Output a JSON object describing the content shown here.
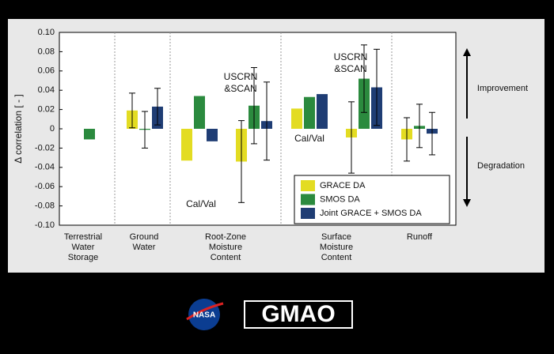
{
  "chart_data": {
    "type": "bar",
    "ylabel": "Δ correlation [ - ]",
    "ylim": [
      -0.1,
      0.1
    ],
    "yticks": [
      {
        "value": 0.1,
        "label": "0.10"
      },
      0.08,
      0.06,
      0.04,
      0.02,
      0,
      -0.02,
      -0.04,
      -0.06,
      -0.08,
      {
        "value": -0.1,
        "label": "-0.10"
      }
    ],
    "series": [
      {
        "name": "GRACE DA",
        "color": "#e3dc22"
      },
      {
        "name": "SMOS DA",
        "color": "#2b8a3e"
      },
      {
        "name": "Joint GRACE + SMOS DA",
        "color": "#1f3d74"
      }
    ],
    "groups": [
      {
        "label": [
          "Terrestrial",
          "Water",
          "Storage"
        ],
        "clusters": [
          {
            "values": [
              null,
              -0.011,
              null
            ]
          }
        ]
      },
      {
        "label": [
          "Ground",
          "Water"
        ],
        "clusters": [
          {
            "values": [
              0.019,
              -0.001,
              0.023
            ],
            "errors": [
              0.018,
              0.019,
              0.019
            ]
          }
        ]
      },
      {
        "label": [
          "Root-Zone",
          "Moisture",
          "Content"
        ],
        "clusters": [
          {
            "values": [
              -0.033,
              0.034,
              -0.013
            ],
            "annotation": [
              "Cal/Val"
            ]
          },
          {
            "values": [
              -0.034,
              0.024,
              0.008
            ],
            "errors": [
              0.0425,
              0.0395,
              0.0405
            ],
            "annotation": [
              "USCRN",
              "&SCAN"
            ]
          }
        ]
      },
      {
        "label": [
          "Surface",
          "Moisture",
          "Content"
        ],
        "clusters": [
          {
            "values": [
              0.021,
              0.033,
              0.036
            ],
            "annotation": [
              "Cal/Val"
            ]
          },
          {
            "values": [
              -0.009,
              0.052,
              0.043
            ],
            "errors": [
              0.037,
              0.035,
              0.0395
            ],
            "annotation": [
              "USCRN",
              "&SCAN"
            ]
          }
        ]
      },
      {
        "label": [
          "Runoff"
        ],
        "clusters": [
          {
            "values": [
              -0.011,
              0.003,
              -0.005
            ],
            "errors": [
              0.0225,
              0.0225,
              0.022
            ]
          }
        ]
      }
    ],
    "side_labels": {
      "up": "Improvement",
      "down": "Degradation"
    }
  },
  "footer": {
    "nasa": "NASA",
    "gmao": "GMAO"
  }
}
